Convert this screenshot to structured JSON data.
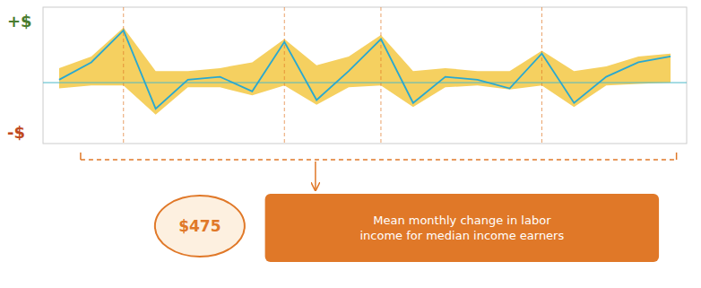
{
  "chart_data": {
    "type": "line",
    "x": [
      0,
      1,
      2,
      3,
      4,
      5,
      6,
      7,
      8,
      9,
      10,
      11,
      12,
      13,
      14,
      15,
      16,
      17,
      18,
      19
    ],
    "xlim": [
      -0.5,
      19.5
    ],
    "ylim": [
      -1.05,
      1.3
    ],
    "tick_labels": false,
    "grid": false,
    "series": [
      {
        "type": "band",
        "color": "#f5d060",
        "upper": [
          0.25,
          0.45,
          0.95,
          0.2,
          0.2,
          0.25,
          0.35,
          0.75,
          0.3,
          0.45,
          0.82,
          0.2,
          0.25,
          0.2,
          0.2,
          0.55,
          0.2,
          0.28,
          0.45,
          0.5
        ],
        "lower": [
          -0.1,
          -0.05,
          -0.05,
          -0.55,
          -0.08,
          -0.08,
          -0.22,
          -0.05,
          -0.38,
          -0.08,
          -0.05,
          -0.42,
          -0.08,
          -0.05,
          -0.12,
          -0.05,
          -0.42,
          -0.05,
          -0.02,
          0.0
        ]
      },
      {
        "type": "line",
        "color": "#29a8d0",
        "values": [
          0.05,
          0.35,
          0.9,
          -0.45,
          0.05,
          0.1,
          -0.15,
          0.7,
          -0.3,
          0.2,
          0.75,
          -0.35,
          0.1,
          0.05,
          -0.1,
          0.5,
          -0.35,
          0.1,
          0.35,
          0.45
        ]
      }
    ],
    "vlines": {
      "values": [
        2,
        7,
        10,
        15
      ],
      "color": "#e07828",
      "line_style": "dashed"
    },
    "hlines": {
      "values": [
        0
      ],
      "color": "#4ab8c8"
    },
    "annotations": [
      {
        "text": "+$",
        "color": "#4a7c2f"
      },
      {
        "text": "-$",
        "color": "#c04a20"
      },
      {
        "text": "$475",
        "color": "#e07828"
      },
      {
        "text": "Mean monthly change in labor\nincome for median income earners",
        "color": "#ffffff"
      }
    ]
  }
}
